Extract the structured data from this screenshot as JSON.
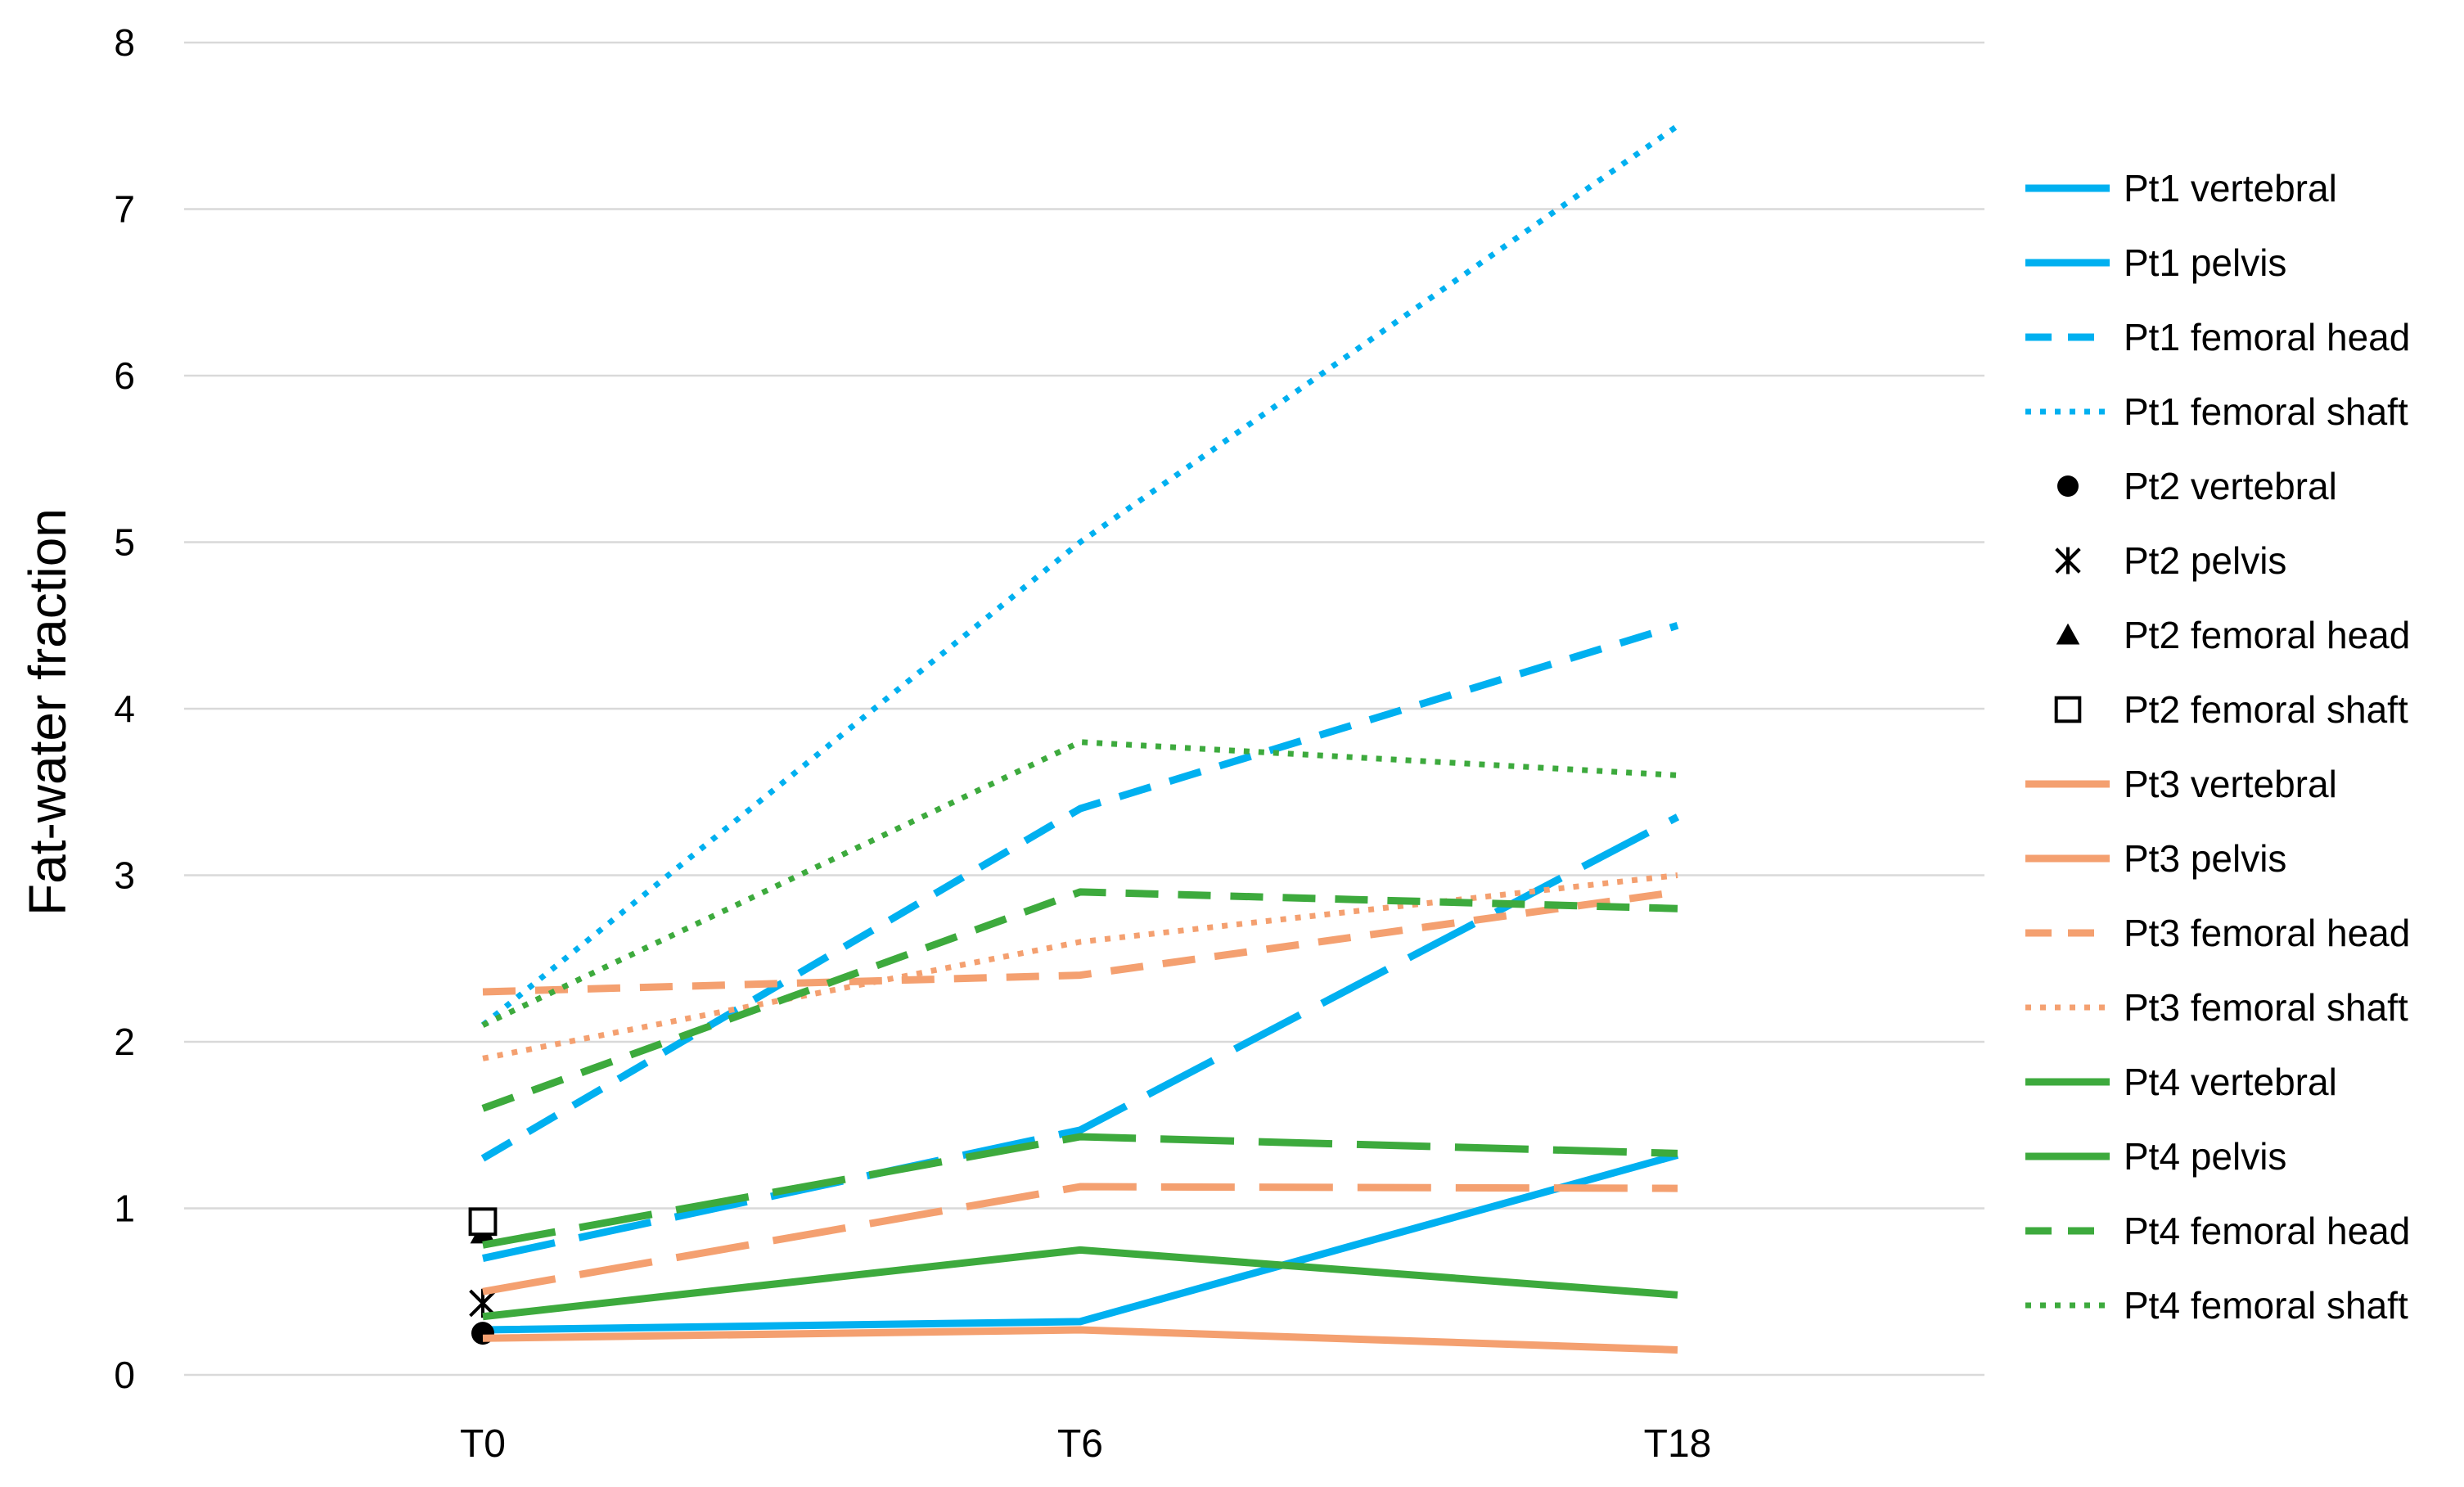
{
  "chart_data": {
    "type": "line",
    "title": "",
    "xlabel": "",
    "ylabel": "Fat-water fraction",
    "categories": [
      "T0",
      "T6",
      "T18"
    ],
    "ylim": [
      0,
      8
    ],
    "yticks": [
      0,
      1,
      2,
      3,
      4,
      5,
      6,
      7,
      8
    ],
    "grid": "horizontal",
    "legend_position": "right",
    "series": [
      {
        "name": "Pt1 vertebral",
        "values": [
          null,
          null,
          null
        ],
        "color": "#00B0F0",
        "dash": "solid",
        "marker": "none"
      },
      {
        "name": "Pt1 pelvis",
        "values": [
          0.27,
          0.32,
          1.32
        ],
        "color": "#00B0F0",
        "dash": "solid",
        "marker": "none"
      },
      {
        "name": "Pt1 femoral head",
        "values": [
          0.7,
          1.47,
          3.35
        ],
        "color": "#00B0F0",
        "dash": "longdash",
        "marker": "none"
      },
      {
        "name": "Pt1 femoral head",
        "values": [
          1.3,
          3.4,
          4.5
        ],
        "color": "#00B0F0",
        "dash": "dash",
        "marker": "none"
      },
      {
        "name": "Pt1 femoral shaft",
        "values": [
          2.1,
          5.0,
          7.5
        ],
        "color": "#00B0F0",
        "dash": "dot",
        "marker": "none"
      },
      {
        "name": "Pt2 vertebral",
        "values": [
          0.25,
          null,
          null
        ],
        "color": "#000000",
        "dash": "none",
        "marker": "circle"
      },
      {
        "name": "Pt2 pelvis",
        "values": [
          0.43,
          null,
          null
        ],
        "color": "#000000",
        "dash": "none",
        "marker": "star"
      },
      {
        "name": "Pt2 femoral head",
        "values": [
          0.85,
          null,
          null
        ],
        "color": "#000000",
        "dash": "none",
        "marker": "triangle"
      },
      {
        "name": "Pt2 femoral shaft",
        "values": [
          0.92,
          null,
          null
        ],
        "color": "#000000",
        "dash": "none",
        "marker": "square"
      },
      {
        "name": "Pt3 vertebral",
        "values": [
          0.22,
          0.27,
          0.15
        ],
        "color": "#F4A070",
        "dash": "solid",
        "marker": "none"
      },
      {
        "name": "Pt3 pelvis",
        "values": [
          null,
          null,
          null
        ],
        "color": "#F4A070",
        "dash": "solid",
        "marker": "none"
      },
      {
        "name": "Pt3 femoral head",
        "values": [
          0.5,
          1.13,
          1.12
        ],
        "color": "#F4A070",
        "dash": "longdash",
        "marker": "none"
      },
      {
        "name": "Pt3 femoral head",
        "values": [
          2.3,
          2.4,
          2.9
        ],
        "color": "#F4A070",
        "dash": "dash",
        "marker": "none"
      },
      {
        "name": "Pt3 femoral shaft",
        "values": [
          1.9,
          2.6,
          3.0
        ],
        "color": "#F4A070",
        "dash": "dot",
        "marker": "none"
      },
      {
        "name": "Pt4 vertebral",
        "values": [
          0.35,
          0.75,
          0.48
        ],
        "color": "#3DAA3D",
        "dash": "solid",
        "marker": "none"
      },
      {
        "name": "Pt4 pelvis",
        "values": [
          null,
          null,
          null
        ],
        "color": "#3DAA3D",
        "dash": "solid",
        "marker": "none"
      },
      {
        "name": "Pt4 femoral head",
        "values": [
          0.78,
          1.43,
          1.33
        ],
        "color": "#3DAA3D",
        "dash": "longdash",
        "marker": "none"
      },
      {
        "name": "Pt4 femoral head",
        "values": [
          1.6,
          2.9,
          2.8
        ],
        "color": "#3DAA3D",
        "dash": "dash",
        "marker": "none"
      },
      {
        "name": "Pt4 femoral shaft",
        "values": [
          2.1,
          3.8,
          3.6
        ],
        "color": "#3DAA3D",
        "dash": "dot",
        "marker": "none"
      }
    ],
    "legend": [
      {
        "label": "Pt1 vertebral",
        "color": "#00B0F0",
        "dash": "solid",
        "marker": "none"
      },
      {
        "label": "Pt1 pelvis",
        "color": "#00B0F0",
        "dash": "solid",
        "marker": "none"
      },
      {
        "label": "Pt1 femoral head",
        "color": "#00B0F0",
        "dash": "dash",
        "marker": "none"
      },
      {
        "label": "Pt1 femoral shaft",
        "color": "#00B0F0",
        "dash": "dot",
        "marker": "none"
      },
      {
        "label": "Pt2 vertebral",
        "color": "#000000",
        "dash": "none",
        "marker": "circle"
      },
      {
        "label": "Pt2 pelvis",
        "color": "#000000",
        "dash": "none",
        "marker": "star"
      },
      {
        "label": "Pt2 femoral head",
        "color": "#000000",
        "dash": "none",
        "marker": "triangle"
      },
      {
        "label": "Pt2 femoral shaft",
        "color": "#000000",
        "dash": "none",
        "marker": "square"
      },
      {
        "label": "Pt3 vertebral",
        "color": "#F4A070",
        "dash": "solid",
        "marker": "none"
      },
      {
        "label": "Pt3 pelvis",
        "color": "#F4A070",
        "dash": "solid",
        "marker": "none"
      },
      {
        "label": "Pt3 femoral head",
        "color": "#F4A070",
        "dash": "dash",
        "marker": "none"
      },
      {
        "label": "Pt3 femoral shaft",
        "color": "#F4A070",
        "dash": "dot",
        "marker": "none"
      },
      {
        "label": "Pt4 vertebral",
        "color": "#3DAA3D",
        "dash": "solid",
        "marker": "none"
      },
      {
        "label": "Pt4 pelvis",
        "color": "#3DAA3D",
        "dash": "solid",
        "marker": "none"
      },
      {
        "label": "Pt4 femoral head",
        "color": "#3DAA3D",
        "dash": "dash",
        "marker": "none"
      },
      {
        "label": "Pt4 femoral shaft",
        "color": "#3DAA3D",
        "dash": "dot",
        "marker": "none"
      }
    ]
  }
}
